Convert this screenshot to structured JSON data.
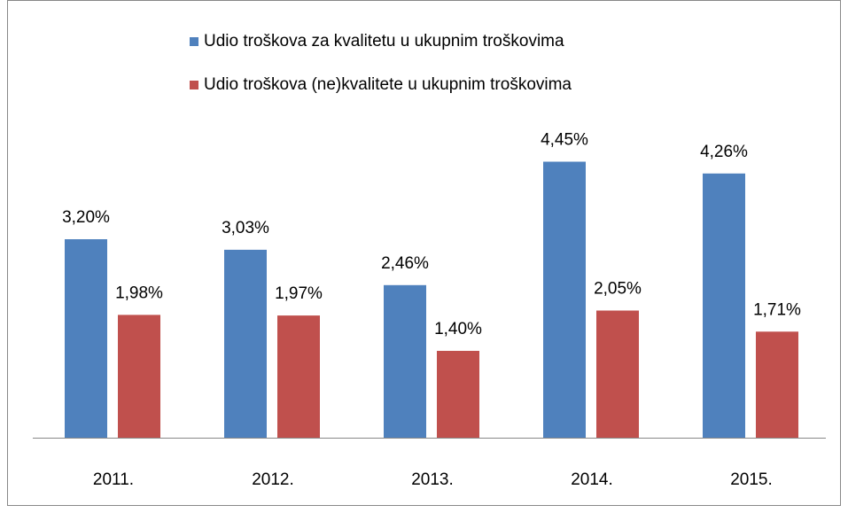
{
  "chart_data": {
    "type": "bar",
    "categories": [
      "2011.",
      "2012.",
      "2013.",
      "2014.",
      "2015."
    ],
    "series": [
      {
        "name": "Udio troškova za kvalitetu u ukupnim troškovima",
        "color": "#4f81bd",
        "values": [
          3.2,
          3.03,
          2.46,
          4.45,
          4.26
        ],
        "value_labels": [
          "3,20%",
          "3,03%",
          "2,46%",
          "4,45%",
          "4,26%"
        ]
      },
      {
        "name": "Udio troškova (ne)kvalitete u ukupnim troškovima",
        "color": "#c0504d",
        "values": [
          1.98,
          1.97,
          1.4,
          2.05,
          1.71
        ],
        "value_labels": [
          "1,98%",
          "1,97%",
          "1,40%",
          "2,05%",
          "1,71%"
        ]
      }
    ]
  }
}
